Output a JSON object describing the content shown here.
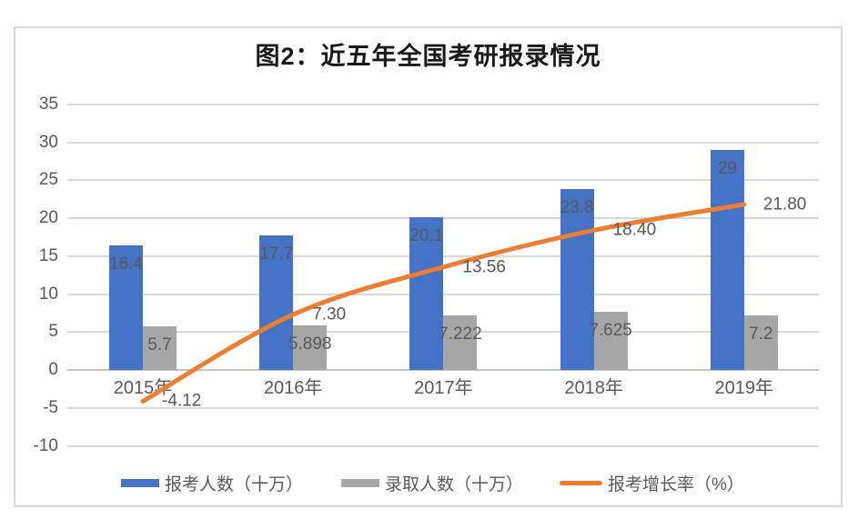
{
  "window": {
    "background": "#ffffff",
    "panel_border_color": "#d9d9d9"
  },
  "chart_data": {
    "type": "bar",
    "subtype": "combo-bar-line",
    "title": "图2：近五年全国考研报录情况",
    "categories": [
      "2015年",
      "2016年",
      "2017年",
      "2018年",
      "2019年"
    ],
    "series": [
      {
        "name": "报考人数（十万）",
        "type": "bar",
        "color": "#4472C4",
        "values": [
          16.4,
          17.7,
          20.1,
          23.8,
          29
        ],
        "labels": [
          "16.4",
          "17.7",
          "20.1",
          "23.8",
          "29"
        ]
      },
      {
        "name": "录取人数（十万）",
        "type": "bar",
        "color": "#A6A6A6",
        "values": [
          5.7,
          5.898,
          7.222,
          7.625,
          7.2
        ],
        "labels": [
          "5.7",
          "5.898",
          "7.222",
          "7.625",
          "7.2"
        ]
      },
      {
        "name": "报考增长率（%）",
        "type": "line",
        "color": "#ED7D31",
        "values": [
          -4.12,
          7.3,
          13.56,
          18.4,
          21.8
        ],
        "labels": [
          "-4.12",
          "7.30",
          "13.56",
          "18.40",
          "21.80"
        ]
      }
    ],
    "y_axis": {
      "min": -10,
      "max": 35,
      "step": 5,
      "ticks": [
        "35",
        "30",
        "25",
        "20",
        "15",
        "10",
        "5",
        "0",
        "-5",
        "-10"
      ]
    },
    "x_axis": {
      "label": ""
    },
    "ylabel": "",
    "xlabel": "",
    "grid": true,
    "gridline_color": "#d8d8db",
    "zero_line_color": "#c3c3c7",
    "label_color": "#595959",
    "legend_position": "bottom"
  }
}
